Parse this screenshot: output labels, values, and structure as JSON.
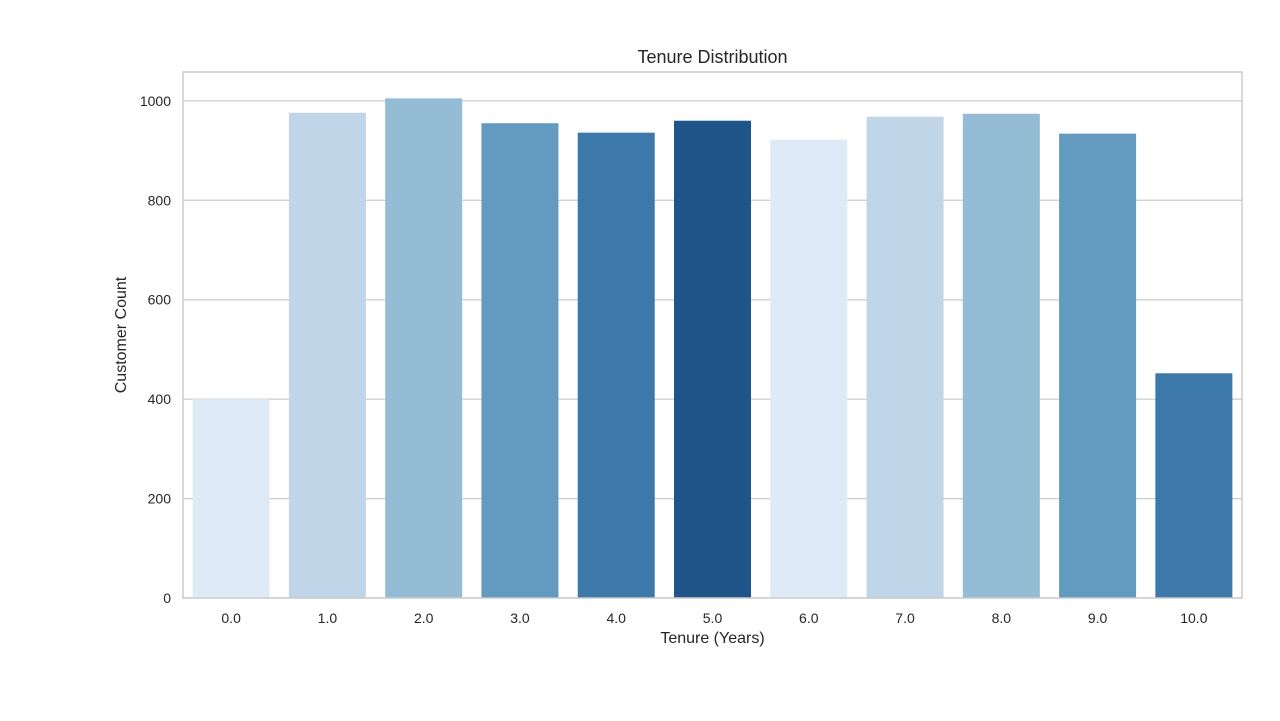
{
  "chart_data": {
    "type": "bar",
    "title": "Tenure Distribution",
    "xlabel": "Tenure (Years)",
    "ylabel": "Customer Count",
    "categories": [
      "0.0",
      "1.0",
      "2.0",
      "3.0",
      "4.0",
      "5.0",
      "6.0",
      "7.0",
      "8.0",
      "9.0",
      "10.0"
    ],
    "values": [
      400,
      976,
      1005,
      955,
      936,
      960,
      922,
      968,
      974,
      934,
      452
    ],
    "colors": [
      "#deebf7",
      "#c0d6e8",
      "#94bcd4",
      "#629bbf",
      "#3c78a9",
      "#205589",
      "#deebf7",
      "#c0d6e8",
      "#94bcd4",
      "#629bbf",
      "#3c78a9"
    ],
    "ylim": [
      0,
      1058
    ],
    "yticks": [
      0,
      200,
      400,
      600,
      800,
      1000
    ],
    "grid": true,
    "grid_axis": "y",
    "grid_color": "#cccccc"
  }
}
